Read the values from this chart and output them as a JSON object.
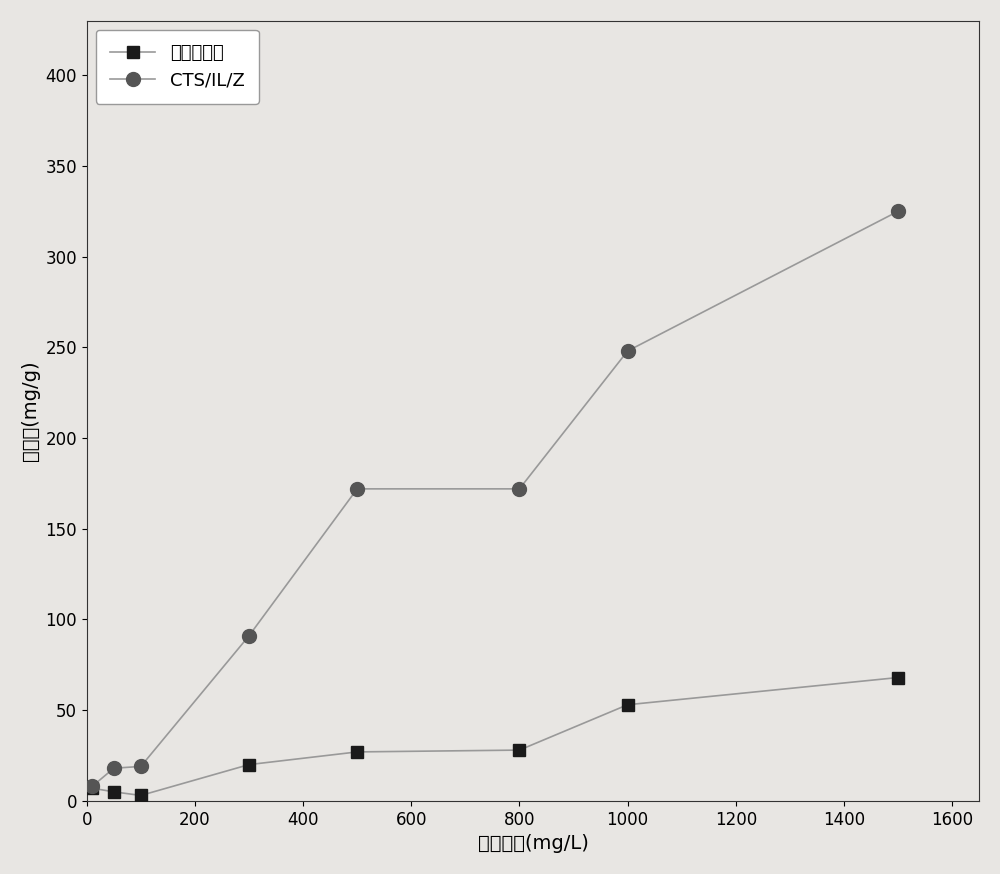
{
  "series1_label": "未改性沸石",
  "series2_label": "CTS/IL/Z",
  "series1_x": [
    10,
    50,
    100,
    300,
    500,
    800,
    1000,
    1500
  ],
  "series1_y": [
    7,
    5,
    3,
    20,
    27,
    28,
    53,
    68
  ],
  "series2_x": [
    10,
    50,
    100,
    300,
    500,
    800,
    1000,
    1500
  ],
  "series2_y": [
    8,
    18,
    19,
    91,
    172,
    172,
    248,
    325
  ],
  "series1_marker": "s",
  "series2_marker": "o",
  "series1_marker_color": "#1a1a1a",
  "series2_marker_color": "#555555",
  "xlabel": "初始浓度(mg/L)",
  "ylabel": "吸附量(mg/g)",
  "xlim": [
    0,
    1650
  ],
  "ylim": [
    0,
    430
  ],
  "xticks": [
    0,
    200,
    400,
    600,
    800,
    1000,
    1200,
    1400,
    1600
  ],
  "yticks": [
    0,
    50,
    100,
    150,
    200,
    250,
    300,
    350,
    400
  ],
  "background_color": "#e8e6e3",
  "line_color": "#999999",
  "legend_loc": "upper left",
  "fontsize_label": 14,
  "fontsize_tick": 12,
  "fontsize_legend": 13
}
